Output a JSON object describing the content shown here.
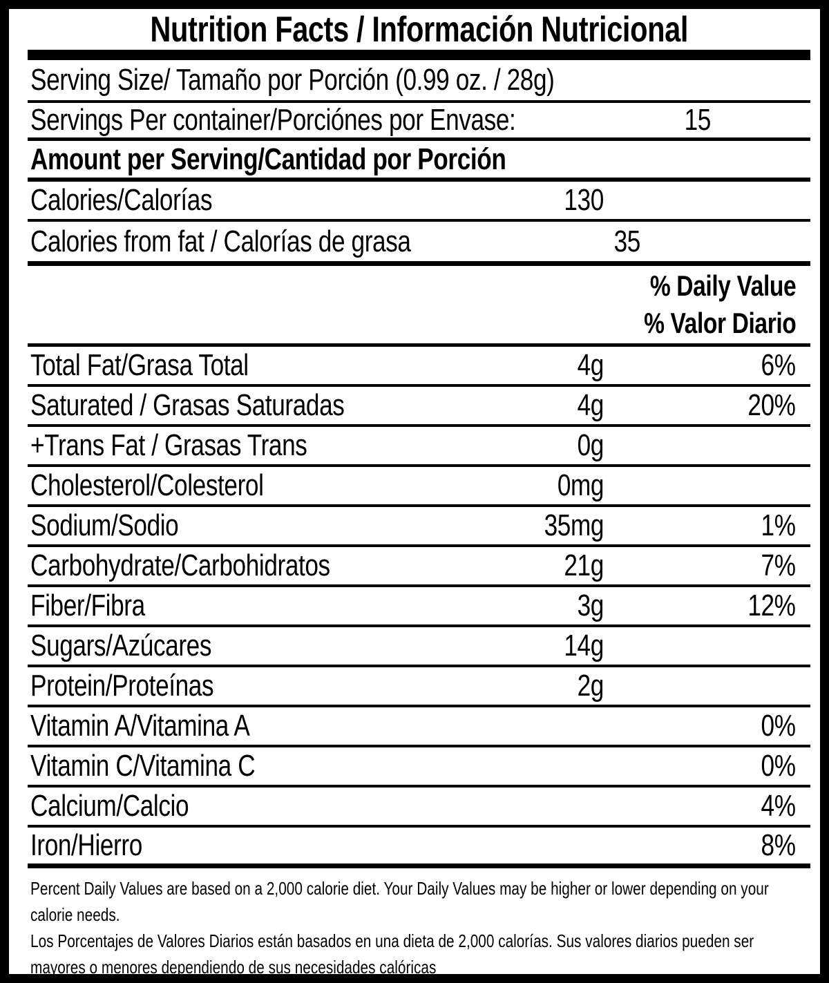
{
  "label": {
    "title": "Nutrition Facts / Información Nutricional",
    "serving_size": "Serving Size/ Tamaño por Porción  (0.99 oz. / 28g)",
    "servings_per_container": {
      "label": "Servings Per container/Porciónes por Envase:",
      "value": "15"
    },
    "amount_per_serving": "Amount per Serving/Cantidad por Porción",
    "calories": {
      "label": "Calories/Calorías",
      "value": "130"
    },
    "calories_from_fat": {
      "label": "Calories from fat / Calorías de grasa",
      "value": "35"
    },
    "daily_value_header": {
      "en": "% Daily Value",
      "es": "% Valor Diario"
    },
    "nutrients": [
      {
        "label": "Total Fat/Grasa Total",
        "value": "4g",
        "dv": "6%"
      },
      {
        "label": "Saturated / Grasas Saturadas",
        "value": "4g",
        "dv": "20%"
      },
      {
        "label": "+Trans Fat / Grasas Trans",
        "value": "0g",
        "dv": ""
      },
      {
        "label": "Cholesterol/Colesterol",
        "value": "0mg",
        "dv": ""
      },
      {
        "label": "Sodium/Sodio",
        "value": "35mg",
        "dv": "1%"
      },
      {
        "label": "Carbohydrate/Carbohidratos",
        "value": "21g",
        "dv": "7%"
      },
      {
        "label": "Fiber/Fibra",
        "value": "3g",
        "dv": "12%"
      },
      {
        "label": "Sugars/Azúcares",
        "value": "14g",
        "dv": ""
      },
      {
        "label": "Protein/Proteínas",
        "value": "2g",
        "dv": ""
      },
      {
        "label": "Vitamin A/Vitamina A",
        "value": "",
        "dv": "0%"
      },
      {
        "label": "Vitamin C/Vitamina C",
        "value": "",
        "dv": "0%"
      },
      {
        "label": "Calcium/Calcio",
        "value": "",
        "dv": "4%"
      },
      {
        "label": "Iron/Hierro",
        "value": "",
        "dv": "8%"
      }
    ],
    "footnote_lines": [
      "Percent Daily Values are based on a 2,000 calorie diet. Your Daily Values may be higher or lower depending on your",
      "calorie needs.",
      "Los Porcentajes de Valores Diarios están basados en una dieta de 2,000 calorías. Sus valores diarios pueden ser",
      "mayores o menores dependiendo de sus necesidades calóricas"
    ],
    "colors": {
      "ink": "#000000",
      "paper": "#ffffff"
    }
  }
}
